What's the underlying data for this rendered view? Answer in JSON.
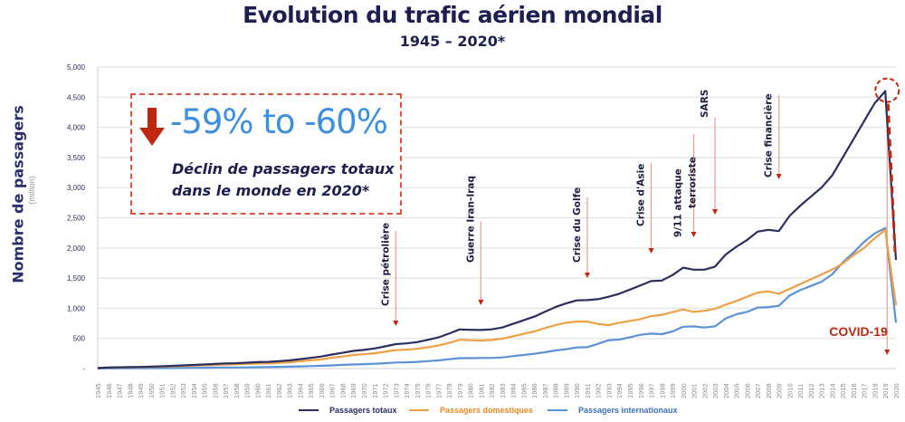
{
  "chart_data": {
    "type": "line",
    "title": "Evolution du trafic aérien mondial",
    "subtitle": "1945 – 2020*",
    "ylabel": "Nombre de passagers",
    "yunit": "(million)",
    "xlabel": "",
    "ylim": [
      0,
      5000
    ],
    "yticks": [
      "-",
      "500",
      "1,000",
      "1,500",
      "2,000",
      "2,500",
      "3,000",
      "3,500",
      "4,000",
      "4,500",
      "5,000"
    ],
    "grid": true,
    "legend_position": "bottom",
    "x": [
      1945,
      1946,
      1947,
      1948,
      1949,
      1950,
      1951,
      1952,
      1953,
      1954,
      1955,
      1956,
      1957,
      1958,
      1959,
      1960,
      1961,
      1962,
      1963,
      1964,
      1965,
      1966,
      1967,
      1968,
      1969,
      1970,
      1971,
      1972,
      1973,
      1974,
      1975,
      1976,
      1977,
      1978,
      1979,
      1980,
      1981,
      1982,
      1983,
      1984,
      1985,
      1986,
      1987,
      1988,
      1989,
      1990,
      1991,
      1992,
      1993,
      1994,
      1995,
      1996,
      1997,
      1998,
      1999,
      2000,
      2001,
      2002,
      2003,
      2004,
      2005,
      2006,
      2007,
      2008,
      2009,
      2010,
      2011,
      2012,
      2013,
      2014,
      2015,
      2016,
      2017,
      2018,
      2019,
      2020
    ],
    "series": [
      {
        "name": "Passagers totaux",
        "color": "#2b2e5e",
        "values": [
          9,
          18,
          21,
          24,
          27,
          31,
          38,
          45,
          52,
          60,
          68,
          76,
          86,
          88,
          98,
          106,
          111,
          121,
          135,
          156,
          177,
          200,
          233,
          261,
          293,
          310,
          333,
          368,
          405,
          417,
          438,
          476,
          516,
          579,
          649,
          642,
          640,
          650,
          680,
          740,
          800,
          860,
          940,
          1020,
          1080,
          1130,
          1135,
          1150,
          1190,
          1240,
          1310,
          1380,
          1450,
          1460,
          1550,
          1672,
          1640,
          1640,
          1690,
          1890,
          2020,
          2130,
          2270,
          2300,
          2280,
          2530,
          2700,
          2850,
          3000,
          3200,
          3500,
          3800,
          4100,
          4400,
          4600,
          1800
        ]
      },
      {
        "name": "Passagers domestiques",
        "color": "#f0a046",
        "values": [
          7,
          15,
          17,
          19,
          22,
          25,
          31,
          36,
          42,
          48,
          54,
          60,
          68,
          70,
          78,
          83,
          86,
          93,
          103,
          120,
          136,
          153,
          180,
          200,
          225,
          237,
          254,
          280,
          305,
          314,
          327,
          353,
          381,
          425,
          477,
          470,
          465,
          475,
          495,
          535,
          575,
          615,
          670,
          720,
          760,
          780,
          780,
          740,
          720,
          760,
          790,
          820,
          870,
          890,
          935,
          980,
          940,
          960,
          990,
          1060,
          1120,
          1190,
          1260,
          1280,
          1240,
          1320,
          1400,
          1480,
          1560,
          1640,
          1740,
          1880,
          2000,
          2160,
          2300,
          1050
        ]
      },
      {
        "name": "Passagers internationaux",
        "color": "#5b93d6",
        "values": [
          2,
          3,
          4,
          5,
          5,
          6,
          7,
          9,
          10,
          12,
          14,
          16,
          18,
          18,
          20,
          23,
          25,
          28,
          32,
          36,
          41,
          47,
          53,
          61,
          68,
          73,
          79,
          88,
          100,
          103,
          111,
          123,
          135,
          154,
          172,
          172,
          175,
          175,
          185,
          205,
          225,
          245,
          270,
          300,
          320,
          350,
          355,
          410,
          470,
          480,
          520,
          560,
          580,
          570,
          615,
          692,
          700,
          680,
          700,
          830,
          900,
          940,
          1010,
          1020,
          1040,
          1210,
          1300,
          1370,
          1440,
          1560,
          1760,
          1920,
          2100,
          2240,
          2330,
          760
        ]
      }
    ],
    "annotations": [
      {
        "label": "Crise pétrolière",
        "year": 1973
      },
      {
        "label": "Guerre Iran-Iraq",
        "year": 1981
      },
      {
        "label": "Crise du Golfe",
        "year": 1991
      },
      {
        "label": "Crise d'Asie",
        "year": 1997
      },
      {
        "label": "9/11 attaque terroriste",
        "year": 2001
      },
      {
        "label": "SARS",
        "year": 2003
      },
      {
        "label": "Crise financière",
        "year": 2009
      },
      {
        "label": "COVID-19",
        "year": 2019
      }
    ]
  },
  "callout": {
    "headline": "-59% to -60%",
    "line1": "Déclin de passagers totaux",
    "line2": "dans le monde en 2020*"
  },
  "legend": {
    "total": "Passagers totaux",
    "domestic": "Passagers domestiques",
    "international": "Passagers internationaux"
  }
}
